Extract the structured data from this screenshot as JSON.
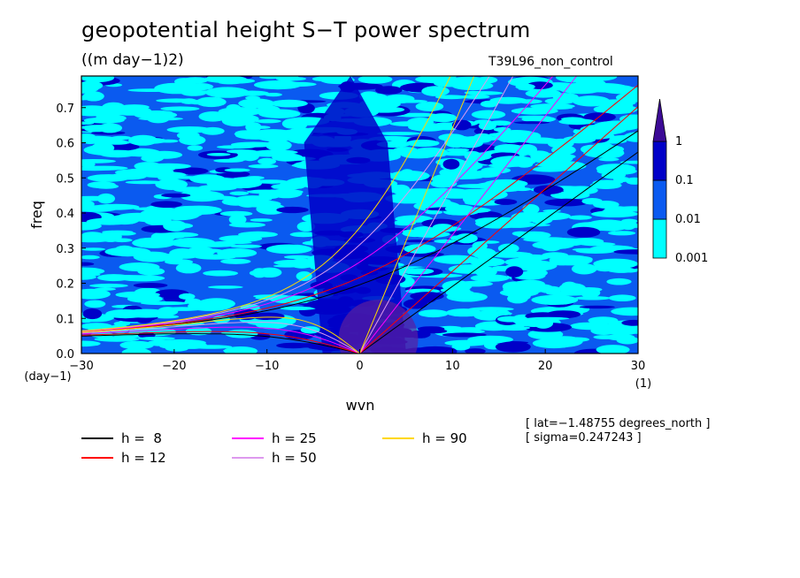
{
  "title": "geopotential height S−T power spectrum",
  "subtitle": "((m day−1)2)",
  "run_label": "T39L96_non_control",
  "info": {
    "lat": "[ lat=−1.48755 degrees_north ]",
    "sigma": "[ sigma=0.247243 ]"
  },
  "chart_data": {
    "type": "heatmap",
    "title": "geopotential height S−T power spectrum",
    "subtitle": "((m day−1)2)",
    "xlabel": "wvn",
    "ylabel": "freq",
    "xunit": "(1)",
    "yunit": "(day−1)",
    "xlim": [
      -30,
      30
    ],
    "ylim": [
      0,
      0.79
    ],
    "xticks": [
      -30,
      -20,
      -10,
      0,
      10,
      20,
      30
    ],
    "yticks": [
      0.0,
      0.1,
      0.2,
      0.3,
      0.4,
      0.5,
      0.6,
      0.7
    ],
    "xtick_labels": [
      "−30",
      "−20",
      "−10",
      "0",
      "10",
      "20",
      "30"
    ],
    "ytick_labels": [
      "0.0",
      "0.1",
      "0.2",
      "0.3",
      "0.4",
      "0.5",
      "0.6",
      "0.7"
    ],
    "colorbar": {
      "labels": [
        "1",
        "0.1",
        "0.01",
        "0.001"
      ],
      "levels": [
        0.001,
        0.01,
        0.1,
        1
      ],
      "colors": [
        "#00ffff",
        "#0a5af0",
        "#0000c8",
        "#3c0a96"
      ]
    },
    "field_colors": {
      "background": "#0a5af0",
      "low": "#00ffff",
      "high": "#0000c8",
      "peak": "#5a1ea0"
    },
    "series": [
      {
        "name": "h =  8",
        "h": 8,
        "color": "#000000"
      },
      {
        "name": "h = 12",
        "h": 12,
        "color": "#ff0000"
      },
      {
        "name": "h = 25",
        "h": 25,
        "color": "#ff00ff"
      },
      {
        "name": "h = 50",
        "h": 50,
        "color": "#dd99ee"
      },
      {
        "name": "h = 90",
        "h": 90,
        "color": "#ffd700"
      }
    ]
  }
}
